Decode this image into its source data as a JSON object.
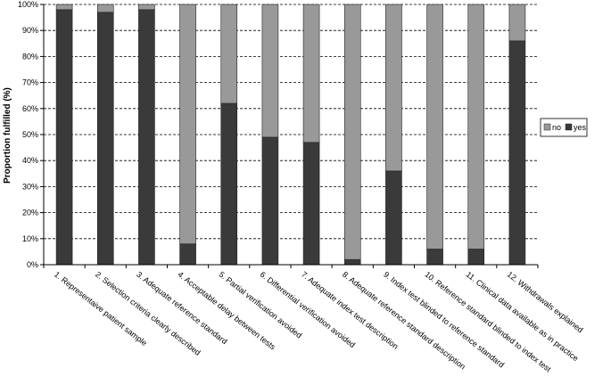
{
  "chart_data": {
    "type": "bar",
    "stacked": true,
    "percent": true,
    "title": "",
    "xlabel": "",
    "ylabel": "Proportion fulfilled (%)",
    "ylim": [
      0,
      100
    ],
    "yticks": [
      "0%",
      "10%",
      "20%",
      "30%",
      "40%",
      "50%",
      "60%",
      "70%",
      "80%",
      "90%",
      "100%"
    ],
    "grid": "horizontal dashed",
    "legend": {
      "position": "right",
      "entries": [
        "no",
        "yes"
      ]
    },
    "categories": [
      "1. Representaive patient sample",
      "2. Selection criteria clearly described",
      "3. Adequate reference standard",
      "4. Acceptable delay between tests",
      "5. Partial verification avoided",
      "6. Differential verification avoided",
      "7. Adequate index test description",
      "8. Adequate reference standard description",
      "9. Index test blinded to reference standard",
      "10. Reference standard blinded to index test",
      "11. Clinical data available as in practice",
      "12. Withdrawals explained"
    ],
    "series": [
      {
        "name": "yes",
        "color": "#3a3a3a",
        "values": [
          98,
          97,
          98,
          8,
          62,
          49,
          47,
          2,
          36,
          6,
          6,
          86
        ]
      },
      {
        "name": "no",
        "color": "#999999",
        "values": [
          2,
          3,
          2,
          92,
          38,
          51,
          53,
          98,
          64,
          94,
          94,
          14
        ]
      }
    ]
  }
}
